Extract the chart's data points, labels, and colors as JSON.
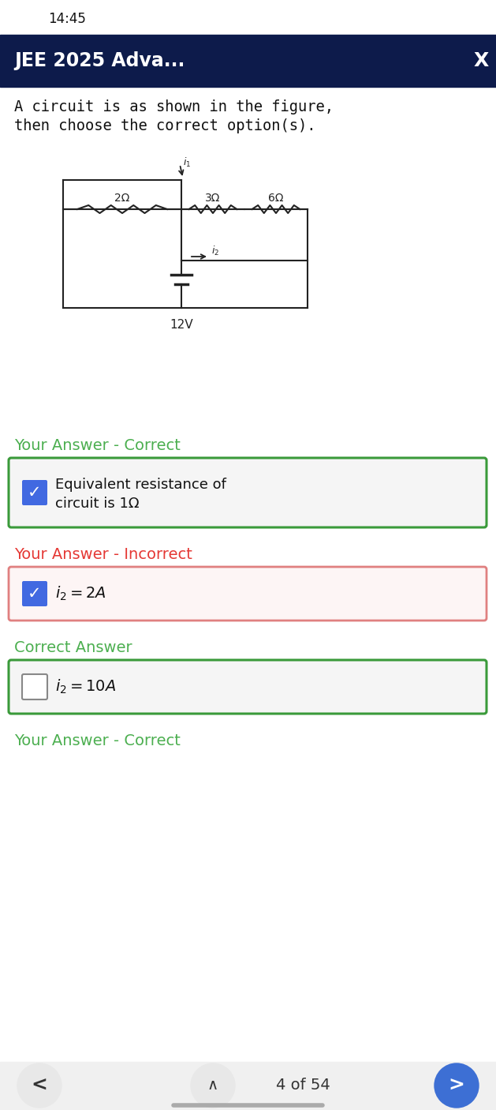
{
  "status_bar_time": "14:45",
  "header_bg": "#0d1b4b",
  "header_title": "JEE 2025 Adva...",
  "header_title_color": "#ffffff",
  "body_bg": "#ffffff",
  "question_line1": "A circuit is as shown in the figure,",
  "question_line2": "then choose the correct option(s).",
  "section1_label": "Your Answer - Correct",
  "section1_color": "#4caf50",
  "box1_border": "#3a9a3a",
  "box1_bg": "#f5f5f5",
  "box1_check_bg": "#4169e1",
  "box1_text1": "Equivalent resistance of",
  "box1_text2": "circuit is 1Ω",
  "section2_label": "Your Answer - Incorrect",
  "section2_color": "#e53935",
  "box2_border": "#e08080",
  "box2_bg": "#fdf5f5",
  "box2_check_bg": "#4169e1",
  "box2_text": "i₂ = 2A",
  "section3_label": "Correct Answer",
  "section3_color": "#4caf50",
  "box3_border": "#3a9a3a",
  "box3_bg": "#f5f5f5",
  "box3_text": "i₂ = 10A",
  "section4_label": "Your Answer - Correct",
  "section4_color": "#4caf50",
  "nav_left": "<",
  "nav_center_icon": "∧",
  "nav_center_text": "4 of 54",
  "nav_right": ">",
  "nav_right_bg": "#3d6fd4",
  "nav_circle_bg": "#e8e8e8",
  "fig_width": 6.29,
  "fig_height": 14.06
}
